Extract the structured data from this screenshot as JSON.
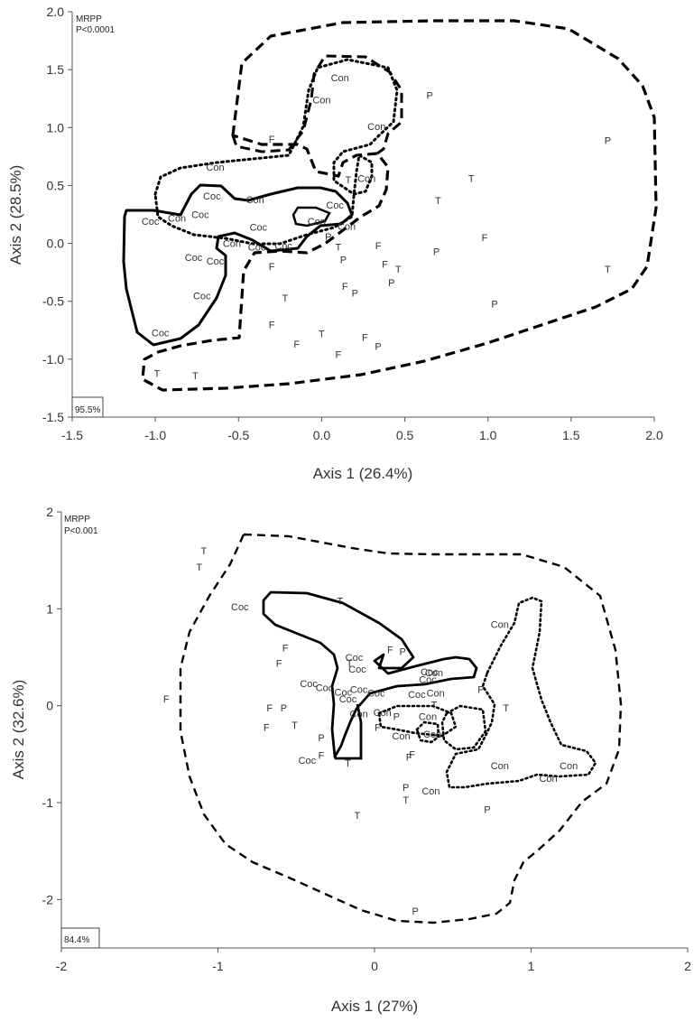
{
  "chart_data": [
    {
      "type": "scatter",
      "xlabel": "Axis 1 (26.4%)",
      "ylabel": "Axis 2 (28.5%)",
      "xlim": [
        -1.5,
        2.0
      ],
      "ylim": [
        -1.5,
        2.0
      ],
      "xticks": [
        "-1.5",
        "-1.0",
        "-0.5",
        "0.0",
        "0.5",
        "1.0",
        "1.5",
        "2.0"
      ],
      "yticks": [
        "-1.5",
        "-1.0",
        "-0.5",
        "0.0",
        "0.5",
        "1.0",
        "1.5",
        "2.0"
      ],
      "annotation_lines": [
        "MRPP",
        "P<0.0001"
      ],
      "corner_label": "95.5%",
      "grid": false,
      "points": [
        {
          "label": "Con",
          "x": 0.11,
          "y": 1.43
        },
        {
          "label": "Con",
          "x": 0.0,
          "y": 1.24
        },
        {
          "label": "Con",
          "x": 0.33,
          "y": 1.01
        },
        {
          "label": "Con",
          "x": -0.64,
          "y": 0.66
        },
        {
          "label": "Con",
          "x": 0.27,
          "y": 0.56
        },
        {
          "label": "Con",
          "x": -0.4,
          "y": 0.38
        },
        {
          "label": "Con",
          "x": -0.87,
          "y": 0.22
        },
        {
          "label": "Con",
          "x": -0.03,
          "y": 0.19
        },
        {
          "label": "Con",
          "x": 0.15,
          "y": 0.15
        },
        {
          "label": "Con",
          "x": -0.54,
          "y": 0.0
        },
        {
          "label": "Coc",
          "x": -0.66,
          "y": 0.41
        },
        {
          "label": "Coc",
          "x": -0.73,
          "y": 0.25
        },
        {
          "label": "Coc",
          "x": -1.03,
          "y": 0.19
        },
        {
          "label": "Coc",
          "x": -0.38,
          "y": 0.14
        },
        {
          "label": "Coc",
          "x": -0.39,
          "y": -0.03
        },
        {
          "label": "Coc",
          "x": -0.23,
          "y": -0.02
        },
        {
          "label": "Coc",
          "x": 0.08,
          "y": 0.33
        },
        {
          "label": "Coc",
          "x": -0.77,
          "y": -0.12
        },
        {
          "label": "Coc",
          "x": -0.64,
          "y": -0.15
        },
        {
          "label": "Coc",
          "x": -0.72,
          "y": -0.45
        },
        {
          "label": "Coc",
          "x": -0.97,
          "y": -0.77
        },
        {
          "label": "F",
          "x": -0.3,
          "y": 0.9
        },
        {
          "label": "F",
          "x": -0.3,
          "y": -0.2
        },
        {
          "label": "F",
          "x": -0.3,
          "y": -0.7
        },
        {
          "label": "F",
          "x": -0.15,
          "y": -0.87
        },
        {
          "label": "F",
          "x": 0.34,
          "y": -0.02
        },
        {
          "label": "F",
          "x": 0.38,
          "y": -0.18
        },
        {
          "label": "F",
          "x": 0.98,
          "y": 0.05
        },
        {
          "label": "F",
          "x": 0.14,
          "y": -0.37
        },
        {
          "label": "F",
          "x": 0.26,
          "y": -0.81
        },
        {
          "label": "F",
          "x": 0.1,
          "y": -0.96
        },
        {
          "label": "T",
          "x": 0.16,
          "y": 0.55
        },
        {
          "label": "T",
          "x": 0.7,
          "y": 0.37
        },
        {
          "label": "T",
          "x": 0.9,
          "y": 0.56
        },
        {
          "label": "T",
          "x": 0.1,
          "y": -0.03
        },
        {
          "label": "T",
          "x": 0.46,
          "y": -0.22
        },
        {
          "label": "T",
          "x": -0.22,
          "y": -0.47
        },
        {
          "label": "T",
          "x": 0.0,
          "y": -0.78
        },
        {
          "label": "T",
          "x": 1.72,
          "y": -0.22
        },
        {
          "label": "T",
          "x": -0.99,
          "y": -1.12
        },
        {
          "label": "T",
          "x": -0.76,
          "y": -1.14
        },
        {
          "label": "P",
          "x": 0.65,
          "y": 1.28
        },
        {
          "label": "P",
          "x": 1.72,
          "y": 0.89
        },
        {
          "label": "P",
          "x": 0.04,
          "y": 0.06
        },
        {
          "label": "P",
          "x": 0.69,
          "y": -0.07
        },
        {
          "label": "P",
          "x": 0.13,
          "y": -0.14
        },
        {
          "label": "P",
          "x": 0.2,
          "y": -0.43
        },
        {
          "label": "P",
          "x": 0.42,
          "y": -0.34
        },
        {
          "label": "P",
          "x": 1.04,
          "y": -0.52
        },
        {
          "label": "P",
          "x": 0.34,
          "y": -0.89
        }
      ]
    },
    {
      "type": "scatter",
      "xlabel": "Axis 1 (27%)",
      "ylabel": "Axis 2 (32.6%)",
      "xlim": [
        -2,
        2
      ],
      "ylim": [
        -2.5,
        2
      ],
      "xticks": [
        "-2",
        "-1",
        "0",
        "1",
        "2"
      ],
      "yticks": [
        "-2",
        "-1",
        "0",
        "1",
        "2"
      ],
      "annotation_lines": [
        "MRPP",
        "P<0.001"
      ],
      "corner_label": "84.4%",
      "grid": false,
      "points": [
        {
          "label": "Coc",
          "x": -0.86,
          "y": 1.02
        },
        {
          "label": "Coc",
          "x": -0.13,
          "y": 0.5
        },
        {
          "label": "Coc",
          "x": -0.11,
          "y": 0.38
        },
        {
          "label": "Coc",
          "x": -0.42,
          "y": 0.23
        },
        {
          "label": "Coc",
          "x": -0.32,
          "y": 0.19
        },
        {
          "label": "Coc",
          "x": -0.2,
          "y": 0.14
        },
        {
          "label": "Coc",
          "x": -0.17,
          "y": 0.07
        },
        {
          "label": "Coc",
          "x": -0.1,
          "y": 0.17
        },
        {
          "label": "Coc",
          "x": 0.01,
          "y": 0.13
        },
        {
          "label": "Coc",
          "x": 0.27,
          "y": 0.12
        },
        {
          "label": "Coc",
          "x": -0.43,
          "y": -0.56
        },
        {
          "label": "Coc",
          "x": 0.35,
          "y": 0.35
        },
        {
          "label": "Coc",
          "x": 0.34,
          "y": 0.27
        },
        {
          "label": "Con",
          "x": 0.38,
          "y": 0.34
        },
        {
          "label": "Con",
          "x": 0.39,
          "y": 0.13
        },
        {
          "label": "Con",
          "x": 0.8,
          "y": 0.84
        },
        {
          "label": "Con",
          "x": -0.1,
          "y": -0.08
        },
        {
          "label": "Con",
          "x": 0.05,
          "y": -0.07
        },
        {
          "label": "Con",
          "x": 0.17,
          "y": -0.31
        },
        {
          "label": "Con",
          "x": 0.34,
          "y": -0.11
        },
        {
          "label": "Con",
          "x": 0.37,
          "y": -0.29
        },
        {
          "label": "Con",
          "x": 0.36,
          "y": -0.88
        },
        {
          "label": "Con",
          "x": 0.8,
          "y": -0.62
        },
        {
          "label": "Con",
          "x": 1.11,
          "y": -0.75
        },
        {
          "label": "Con",
          "x": 1.24,
          "y": -0.62
        },
        {
          "label": "F",
          "x": -0.57,
          "y": 0.6
        },
        {
          "label": "F",
          "x": -0.61,
          "y": 0.44
        },
        {
          "label": "F",
          "x": -0.67,
          "y": -0.02
        },
        {
          "label": "F",
          "x": -0.69,
          "y": -0.22
        },
        {
          "label": "F",
          "x": -1.33,
          "y": 0.07
        },
        {
          "label": "F",
          "x": 0.1,
          "y": 0.58
        },
        {
          "label": "F",
          "x": 0.02,
          "y": -0.22
        },
        {
          "label": "F",
          "x": 0.24,
          "y": -0.5
        },
        {
          "label": "F",
          "x": 0.22,
          "y": -0.53
        },
        {
          "label": "F",
          "x": -0.34,
          "y": -0.51
        },
        {
          "label": "T",
          "x": -1.09,
          "y": 1.6
        },
        {
          "label": "T",
          "x": -1.12,
          "y": 1.43
        },
        {
          "label": "T",
          "x": -0.22,
          "y": 1.08
        },
        {
          "label": "T",
          "x": -0.16,
          "y": 0.44
        },
        {
          "label": "T",
          "x": -0.51,
          "y": -0.2
        },
        {
          "label": "T",
          "x": -0.17,
          "y": -0.59
        },
        {
          "label": "T",
          "x": -0.11,
          "y": -1.13
        },
        {
          "label": "T",
          "x": 0.2,
          "y": -0.97
        },
        {
          "label": "T",
          "x": 0.84,
          "y": -0.02
        },
        {
          "label": "T",
          "x": 0.38,
          "y": 0.01
        },
        {
          "label": "P",
          "x": 0.18,
          "y": 0.56
        },
        {
          "label": "P",
          "x": -0.58,
          "y": -0.02
        },
        {
          "label": "P",
          "x": -0.34,
          "y": -0.33
        },
        {
          "label": "P",
          "x": 0.14,
          "y": -0.11
        },
        {
          "label": "P",
          "x": 0.68,
          "y": 0.17
        },
        {
          "label": "P",
          "x": 0.2,
          "y": -0.84
        },
        {
          "label": "P",
          "x": 0.72,
          "y": -1.07
        },
        {
          "label": "P",
          "x": 0.26,
          "y": -2.12
        }
      ]
    }
  ]
}
